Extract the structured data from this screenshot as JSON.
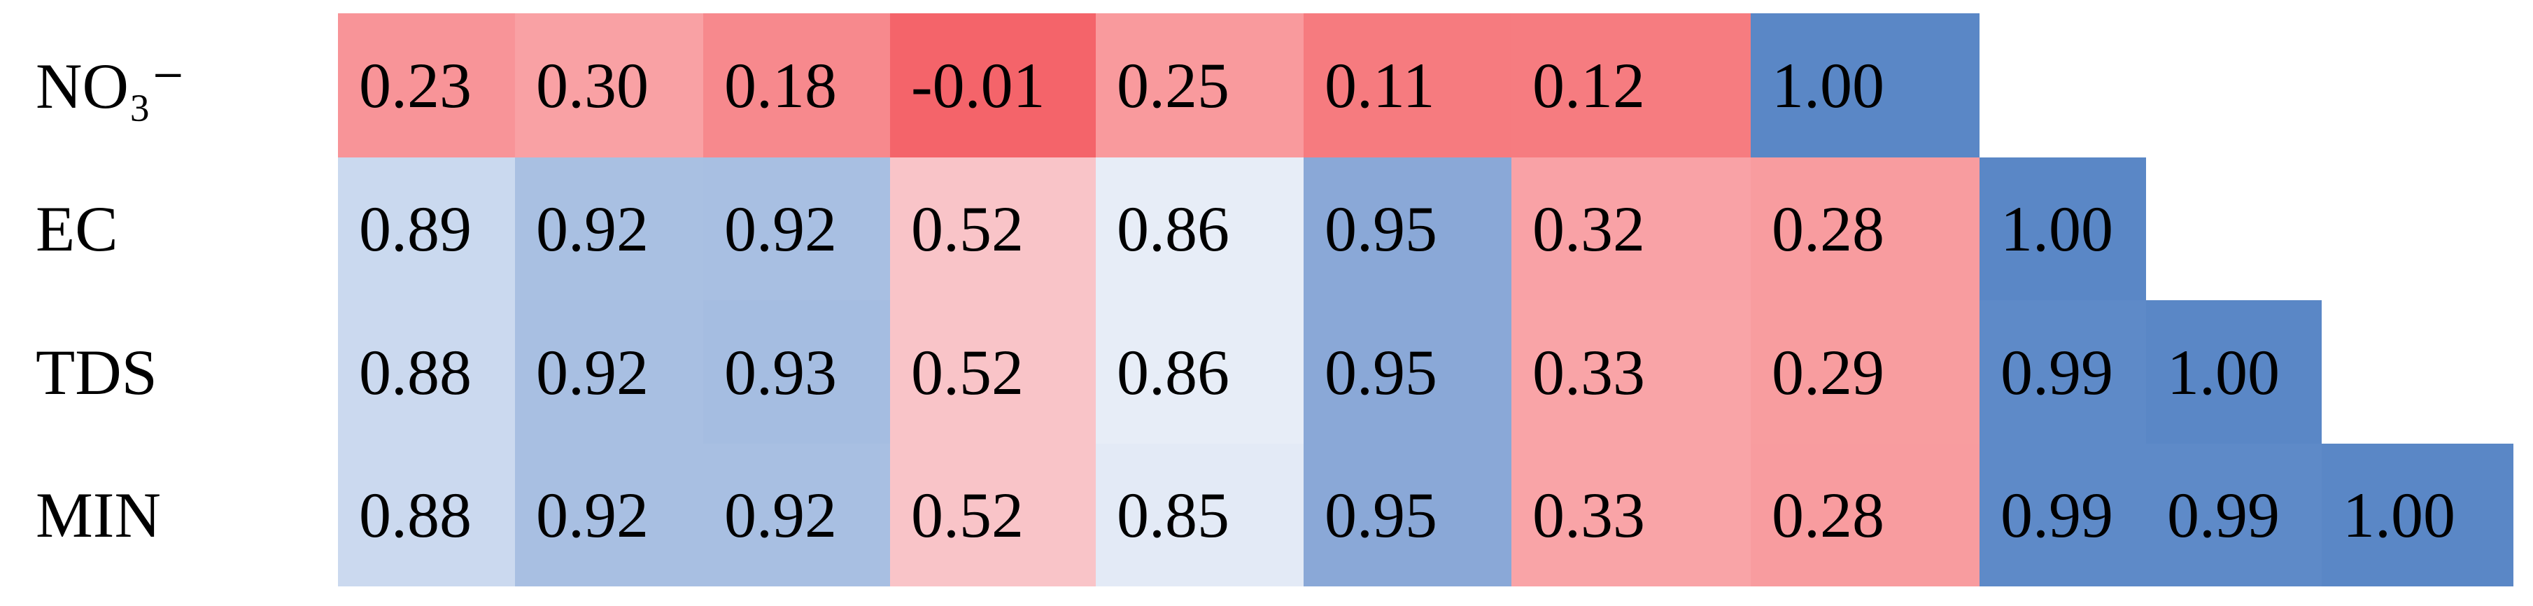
{
  "table": {
    "rows": [
      {
        "label": "NO₃⁻",
        "cells": [
          {
            "text": "0.23",
            "color": "#f89498"
          },
          {
            "text": "0.30",
            "color": "#f9a1a4"
          },
          {
            "text": "0.18",
            "color": "#f7898d"
          },
          {
            "text": "-0.01",
            "color": "#f4646a"
          },
          {
            "text": "0.25",
            "color": "#f99a9d"
          },
          {
            "text": "0.11",
            "color": "#f67b7f"
          },
          {
            "text": "0.12",
            "color": "#f67c80"
          },
          {
            "text": "1.00",
            "color": "#5a87c6"
          }
        ]
      },
      {
        "label": "EC",
        "cells": [
          {
            "text": "0.89",
            "color": "#cad9ef"
          },
          {
            "text": "0.92",
            "color": "#a9c0e2"
          },
          {
            "text": "0.92",
            "color": "#a8bfe2"
          },
          {
            "text": "0.52",
            "color": "#f9c4c8"
          },
          {
            "text": "0.86",
            "color": "#e7edf7"
          },
          {
            "text": "0.95",
            "color": "#8aa8d7"
          },
          {
            "text": "0.32",
            "color": "#f9a2a6"
          },
          {
            "text": "0.28",
            "color": "#f89c9f"
          },
          {
            "text": "1.00",
            "color": "#5a87c6"
          }
        ]
      },
      {
        "label": "TDS",
        "cells": [
          {
            "text": "0.88",
            "color": "#cbd9ef"
          },
          {
            "text": "0.92",
            "color": "#a8bfe2"
          },
          {
            "text": "0.93",
            "color": "#a5bde1"
          },
          {
            "text": "0.52",
            "color": "#f9c4c8"
          },
          {
            "text": "0.86",
            "color": "#e7edf7"
          },
          {
            "text": "0.95",
            "color": "#8aa8d7"
          },
          {
            "text": "0.33",
            "color": "#f9a4a7"
          },
          {
            "text": "0.29",
            "color": "#f89d9f"
          },
          {
            "text": "0.99",
            "color": "#5e8ac8"
          },
          {
            "text": "1.00",
            "color": "#5a87c6"
          }
        ]
      },
      {
        "label": "MIN",
        "cells": [
          {
            "text": "0.88",
            "color": "#cbd9ef"
          },
          {
            "text": "0.92",
            "color": "#a8bfe2"
          },
          {
            "text": "0.92",
            "color": "#a8bfe2"
          },
          {
            "text": "0.52",
            "color": "#f9c4c8"
          },
          {
            "text": "0.85",
            "color": "#e3eaf6"
          },
          {
            "text": "0.95",
            "color": "#8aa8d7"
          },
          {
            "text": "0.33",
            "color": "#f9a4a7"
          },
          {
            "text": "0.28",
            "color": "#f89c9f"
          },
          {
            "text": "0.99",
            "color": "#5e8ac8"
          },
          {
            "text": "0.99",
            "color": "#5e8ac8"
          },
          {
            "text": "1.00",
            "color": "#5a87c6"
          }
        ]
      }
    ]
  }
}
